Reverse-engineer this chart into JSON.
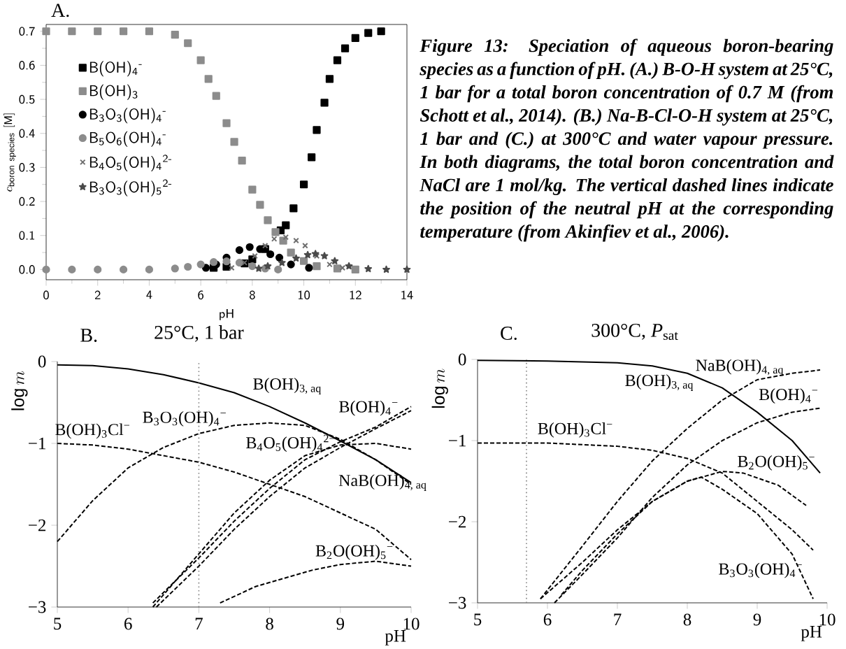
{
  "chart_data": [
    {
      "type": "scatter",
      "title": "A.",
      "xlabel": "pH",
      "ylabel": "c_{\\mathrm{boron\\ species}}\\ [\\mathrm{M}]",
      "xlim": [
        0,
        14
      ],
      "ylim": [
        -0.03,
        0.72
      ],
      "xticks": [
        0,
        2,
        4,
        6,
        8,
        10,
        12,
        14
      ],
      "yticks": [
        {
          "value": 0,
          "label": "0.0"
        },
        0.1,
        0.2,
        0.3,
        0.4,
        0.5,
        0.6,
        0.7
      ],
      "legend": "top left",
      "annotations": [
        "Figure 13: Speciation of aqueous boron-bearing species as a function of pH. (A.) B-O-H system at 25°C, 1 bar for a total boron concentration of 0.7 M (from Schott et al., 2014). (B.) Na-B-Cl-O-H system at 25°C, 1 bar and (C.) at 300°C and water vapour pressure. In both diagrams, the total boron concentration and NaCl are 1 mol/kg. The vertical dashed lines indicate the position of the neutral pH at the corresponding temperature (from Akinfiev et al., 2006)."
      ],
      "series": [
        {
          "name": "B(OH)$_{4}$$^{-}$",
          "color": "#000000",
          "marker": "square",
          "x": [
            6.5,
            7,
            7.7,
            8,
            8.5,
            9.1,
            9.3,
            9.6,
            10,
            10.3,
            10.5,
            10.8,
            11,
            11.3,
            11.6,
            12,
            12.5,
            13
          ],
          "values": [
            0.005,
            0.008,
            0.018,
            0.03,
            0.06,
            0.115,
            0.13,
            0.18,
            0.25,
            0.33,
            0.41,
            0.49,
            0.56,
            0.615,
            0.65,
            0.68,
            0.695,
            0.7
          ]
        },
        {
          "name": "B(OH)$_{3}$",
          "color": "#8c8c8c",
          "marker": "square",
          "x": [
            0,
            1,
            2,
            3,
            4,
            5,
            5.5,
            6,
            6.3,
            6.6,
            7,
            7.3,
            7.6,
            8,
            8.3,
            8.6,
            8.9,
            9.2,
            9.5,
            10,
            10.5,
            11.3,
            12
          ],
          "values": [
            0.7,
            0.7,
            0.7,
            0.7,
            0.7,
            0.69,
            0.665,
            0.615,
            0.56,
            0.51,
            0.43,
            0.375,
            0.32,
            0.235,
            0.19,
            0.145,
            0.11,
            0.085,
            0.05,
            0.025,
            0.01,
            0.003,
            0
          ]
        },
        {
          "name": "B$_{3}$O$_{3}$(OH)$_{4}$$^{-}$",
          "color": "#000000",
          "marker": "circle",
          "x": [
            6.2,
            6.6,
            7,
            7.5,
            7.9,
            8.3,
            8.7,
            9.05,
            9.5,
            10.2
          ],
          "values": [
            0.005,
            0.015,
            0.035,
            0.057,
            0.066,
            0.06,
            0.045,
            0.035,
            0.015,
            0.005
          ]
        },
        {
          "name": "B$_{5}$O$_{6}$(OH)$_{4}$$^{-}$",
          "color": "#8c8c8c",
          "marker": "circle",
          "x": [
            0,
            1,
            2,
            3,
            4,
            5,
            5.5,
            6,
            6.5,
            7,
            7.5,
            8,
            8.5,
            9
          ],
          "values": [
            0,
            0,
            0,
            0,
            0,
            0.003,
            0.008,
            0.015,
            0.022,
            0.024,
            0.02,
            0.01,
            0.003,
            0
          ]
        },
        {
          "name": "B$_{4}$O$_{5}$(OH)$_{4}$$^{2-}$",
          "color": "#6e6e6e",
          "marker": "cross",
          "x": [
            7.2,
            7.7,
            8.1,
            8.5,
            8.85,
            9.3,
            9.7,
            10.05,
            10.5,
            11,
            11.5
          ],
          "values": [
            0.005,
            0.02,
            0.04,
            0.07,
            0.09,
            0.095,
            0.085,
            0.07,
            0.04,
            0.015,
            0.005
          ]
        },
        {
          "name": "B$_{3}$O$_{3}$(OH)$_{5}$$^{2-}$",
          "color": "#4a4a4a",
          "marker": "star",
          "x": [
            8.25,
            8.6,
            9.15,
            9.7,
            10.15,
            10.45,
            10.8,
            11.2,
            11.75,
            12.5,
            13.2,
            14
          ],
          "values": [
            0.003,
            0.01,
            0.02,
            0.033,
            0.043,
            0.046,
            0.04,
            0.025,
            0.01,
            0.002,
            0,
            0
          ]
        }
      ]
    },
    {
      "type": "line",
      "title": "B.",
      "subtitle": "25°C, 1 bar",
      "xlabel": "pH",
      "ylabel": "\\log m",
      "xlim": [
        5,
        10
      ],
      "ylim": [
        -3,
        0
      ],
      "xticks": [
        5,
        6,
        7,
        8,
        9,
        10
      ],
      "yticks": [
        {
          "value": -3,
          "label": "−3"
        },
        {
          "value": -2,
          "label": "−2"
        },
        {
          "value": -1,
          "label": "−1"
        },
        0
      ],
      "ref_lines": [
        {
          "axis": "x",
          "value": 7,
          "line_style": "dotted"
        }
      ],
      "annotations": [
        "B(OH)$_{3, aq}$",
        "B(OH)$_{4}$$^{−}$",
        "B$_{3}$O$_{3}$(OH)$_{4}$$^{−}$",
        "B(OH)$_{3}$Cl$^{−}$",
        "B$_{4}$O$_{5}$(OH)$_{4}$$^{2−}$",
        "NaB(OH)$_{4, aq}$",
        "B$_{2}$O(OH)$_{5}$$^{−}$"
      ],
      "series": [
        {
          "color": "#000000",
          "line_style": "solid",
          "x": [
            5,
            5.5,
            6,
            6.5,
            7,
            7.5,
            8,
            8.5,
            9,
            9.5,
            10
          ],
          "values": [
            -0.04,
            -0.05,
            -0.09,
            -0.16,
            -0.26,
            -0.38,
            -0.55,
            -0.75,
            -0.97,
            -1.2,
            -1.48
          ]
        },
        {
          "color": "#000000",
          "line_style": "dashed",
          "x": [
            5,
            5.5,
            6,
            6.5,
            7,
            7.5,
            8,
            8.5,
            9,
            9.5,
            10
          ],
          "values": [
            -1.0,
            -1.02,
            -1.07,
            -1.15,
            -1.23,
            -1.35,
            -1.5,
            -1.65,
            -1.85,
            -2.05,
            -2.42
          ]
        },
        {
          "color": "#000000",
          "line_style": "dashed",
          "x": [
            5,
            5.5,
            6,
            6.5,
            7,
            7.5,
            8,
            8.5,
            9,
            9.5,
            10
          ],
          "values": [
            -2.2,
            -1.7,
            -1.3,
            -1.05,
            -0.88,
            -0.78,
            -0.75,
            -0.78,
            -0.95,
            -1.2,
            -1.5
          ]
        },
        {
          "color": "#000000",
          "line_style": "dashed",
          "x": [
            6.35,
            7,
            7.5,
            8,
            8.5,
            9,
            9.5,
            10
          ],
          "values": [
            -2.95,
            -2.4,
            -1.95,
            -1.55,
            -1.2,
            -0.98,
            -0.8,
            -0.55
          ]
        },
        {
          "color": "#000000",
          "line_style": "dashed",
          "x": [
            6.4,
            7,
            7.5,
            8,
            8.5,
            9,
            9.5,
            10
          ],
          "values": [
            -3.0,
            -2.5,
            -2.05,
            -1.65,
            -1.3,
            -1.05,
            -0.82,
            -0.6
          ]
        },
        {
          "color": "#000000",
          "line_style": "dashed",
          "x": [
            6.35,
            7,
            7.5,
            8,
            8.5,
            9,
            9.5,
            10
          ],
          "values": [
            -3.0,
            -2.35,
            -1.85,
            -1.45,
            -1.15,
            -1.02,
            -1.0,
            -1.07
          ]
        },
        {
          "color": "#000000",
          "line_style": "dashed",
          "x": [
            7.3,
            7.8,
            8.2,
            8.6,
            9,
            9.5,
            10
          ],
          "values": [
            -2.95,
            -2.75,
            -2.65,
            -2.55,
            -2.48,
            -2.44,
            -2.5
          ]
        }
      ]
    },
    {
      "type": "line",
      "title": "C.",
      "subtitle": "300°C, *P*$_{sat}$",
      "xlabel": "pH",
      "ylabel": "\\log m",
      "xlim": [
        5,
        10
      ],
      "ylim": [
        -3,
        0
      ],
      "xticks": [
        5,
        6,
        7,
        8,
        9,
        10
      ],
      "yticks": [
        {
          "value": -3,
          "label": "−3"
        },
        {
          "value": -2,
          "label": "−2"
        },
        {
          "value": -1,
          "label": "−1"
        },
        0
      ],
      "ref_lines": [
        {
          "axis": "x",
          "value": 5.7,
          "line_style": "dotted"
        }
      ],
      "annotations": [
        "NaB(OH)$_{4, aq}$",
        "B(OH)$_{3, aq}$",
        "B(OH)$_{4}$$^{−}$",
        "B(OH)$_{3}$Cl$^{−}$",
        "B$_{2}$O(OH)$_{5}$$^{−}$",
        "B$_{3}$O$_{3}$(OH)$_{4}$$^{−}$"
      ],
      "series": [
        {
          "color": "#000000",
          "line_style": "solid",
          "x": [
            5,
            6,
            7,
            7.5,
            8,
            8.5,
            9,
            9.5,
            9.9
          ],
          "values": [
            -0.01,
            -0.02,
            -0.04,
            -0.08,
            -0.17,
            -0.35,
            -0.65,
            -1.0,
            -1.4
          ]
        },
        {
          "color": "#000000",
          "line_style": "dashed",
          "x": [
            5,
            6,
            7,
            7.5,
            8,
            8.5,
            9,
            9.5,
            9.8
          ],
          "values": [
            -1.03,
            -1.03,
            -1.07,
            -1.12,
            -1.22,
            -1.4,
            -1.75,
            -2.1,
            -2.35
          ]
        },
        {
          "color": "#000000",
          "line_style": "dashed",
          "x": [
            5.9,
            6.5,
            7,
            7.5,
            8,
            8.5,
            9,
            9.5,
            9.9
          ],
          "values": [
            -2.95,
            -2.3,
            -1.75,
            -1.25,
            -0.85,
            -0.5,
            -0.25,
            -0.17,
            -0.13
          ]
        },
        {
          "color": "#000000",
          "line_style": "dashed",
          "x": [
            6.1,
            6.5,
            7,
            7.5,
            8,
            8.5,
            9,
            9.5,
            9.9
          ],
          "values": [
            -3.0,
            -2.65,
            -2.2,
            -1.7,
            -1.3,
            -1.0,
            -0.78,
            -0.65,
            -0.6
          ]
        },
        {
          "color": "#000000",
          "line_style": "dashed",
          "x": [
            6.2,
            6.5,
            7,
            7.5,
            8,
            8.5,
            8.8,
            9.3,
            9.7
          ],
          "values": [
            -2.9,
            -2.6,
            -2.15,
            -1.75,
            -1.5,
            -1.38,
            -1.4,
            -1.55,
            -1.8
          ]
        },
        {
          "color": "#000000",
          "line_style": "dashed",
          "x": [
            5.9,
            6.5,
            7,
            7.5,
            8,
            8.2,
            8.5,
            9,
            9.5,
            9.8
          ],
          "values": [
            -2.95,
            -2.5,
            -2.1,
            -1.75,
            -1.5,
            -1.45,
            -1.6,
            -1.9,
            -2.4,
            -2.95
          ]
        }
      ]
    }
  ]
}
